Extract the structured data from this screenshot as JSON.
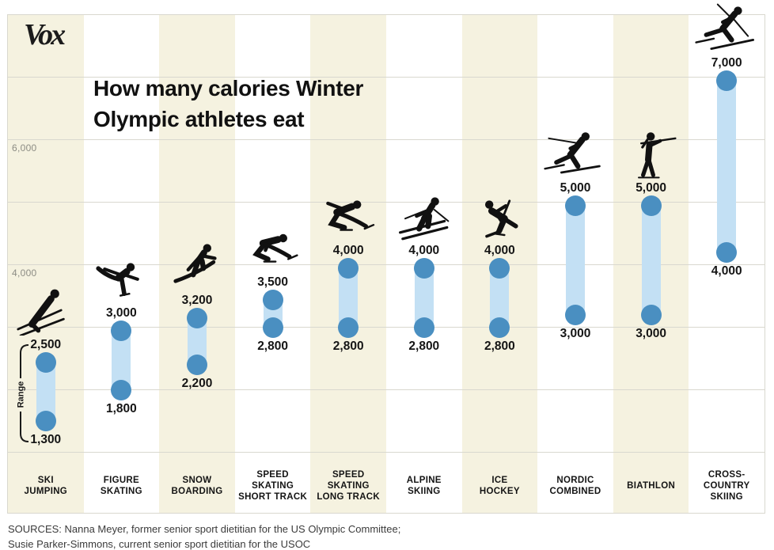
{
  "brand": {
    "logo_text": "Vox"
  },
  "header": {
    "title_line1": "How many calories Winter",
    "title_line2": "Olympic athletes eat"
  },
  "annotations": {
    "range_label": "Range"
  },
  "footer": {
    "sources_line1": "SOURCES: Nanna Meyer, former senior sport dietitian for the US Olympic Committee;",
    "sources_line2": "Susie Parker-Simmons, current senior sport dietitian for the USOC"
  },
  "colors": {
    "background": "#ffffff",
    "band_beige": "#f5f2e0",
    "band_white": "#ffffff",
    "gridline": "#d9d8cf",
    "dot_blue": "#4a8fc1",
    "range_fill_blue": "#c3e0f4",
    "text_dark": "#151515",
    "axis_gray": "#8c8c84",
    "icon_black": "#111111"
  },
  "chart_data": {
    "type": "dumbbell-range",
    "title": "How many calories Winter Olympic athletes eat",
    "unit": "calories per day",
    "grid": "horizontal",
    "legend": "none",
    "ylim": [
      1000,
      8000
    ],
    "y_gridlines": [
      1000,
      2000,
      3000,
      4000,
      5000,
      6000,
      7000,
      8000
    ],
    "y_axis_labels": [
      {
        "value": 6000,
        "label": "6,000"
      },
      {
        "value": 4000,
        "label": "4,000"
      }
    ],
    "categories": [
      "Ski Jumping",
      "Figure Skating",
      "Snow Boarding",
      "Speed Skating Short Track",
      "Speed Skating Long Track",
      "Alpine Skiing",
      "Ice Hockey",
      "Nordic Combined",
      "Biathlon",
      "Cross-Country Skiing"
    ],
    "category_label_lines": [
      [
        "SKI",
        "JUMPING"
      ],
      [
        "FIGURE",
        "SKATING"
      ],
      [
        "SNOW",
        "BOARDING"
      ],
      [
        "SPEED",
        "SKATING",
        "SHORT TRACK"
      ],
      [
        "SPEED",
        "SKATING",
        "LONG TRACK"
      ],
      [
        "ALPINE",
        "SKIING"
      ],
      [
        "ICE",
        "HOCKEY"
      ],
      [
        "NORDIC",
        "COMBINED"
      ],
      [
        "BIATHLON"
      ],
      [
        "CROSS-",
        "COUNTRY",
        "SKIING"
      ]
    ],
    "series": [
      {
        "name": "min calories",
        "values": [
          1300,
          1800,
          2200,
          2800,
          2800,
          2800,
          2800,
          3000,
          3000,
          4000
        ]
      },
      {
        "name": "max calories",
        "values": [
          2500,
          3000,
          3200,
          3500,
          4000,
          4000,
          4000,
          5000,
          5000,
          7000
        ]
      }
    ],
    "value_labels": {
      "min": [
        "1,300",
        "1,800",
        "2,200",
        "2,800",
        "2,800",
        "2,800",
        "2,800",
        "3,000",
        "3,000",
        "4,000"
      ],
      "max": [
        "2,500",
        "3,000",
        "3,200",
        "3,500",
        "4,000",
        "4,000",
        "4,000",
        "5,000",
        "5,000",
        "7,000"
      ]
    },
    "icons": [
      "ski-jumper-icon",
      "figure-skater-icon",
      "snowboarder-icon",
      "short-track-speed-skater-icon",
      "long-track-speed-skater-icon",
      "alpine-skier-icon",
      "ice-hockey-player-icon",
      "nordic-combined-skier-icon",
      "biathlete-icon",
      "cross-country-skier-icon"
    ]
  }
}
